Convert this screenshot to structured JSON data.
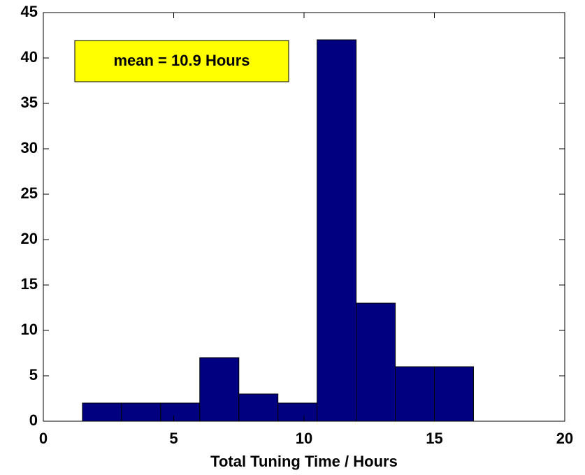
{
  "chart_data": {
    "type": "histogram",
    "xlabel": "Total Tuning Time / Hours",
    "annotation": "mean = 10.9 Hours",
    "bins": [
      1.5,
      3,
      4.5,
      6,
      7.5,
      9,
      10.5,
      12,
      13.5,
      15,
      16.5
    ],
    "counts": [
      2,
      2,
      2,
      7,
      3,
      2,
      42,
      13,
      6,
      6
    ],
    "color": "#000080",
    "xlim": [
      0,
      20
    ],
    "xticks": [
      0,
      5,
      10,
      15,
      20
    ],
    "ylim": [
      0,
      45
    ],
    "yticks": [
      0,
      5,
      10,
      15,
      20,
      25,
      30,
      35,
      40,
      45
    ],
    "grid": false
  }
}
